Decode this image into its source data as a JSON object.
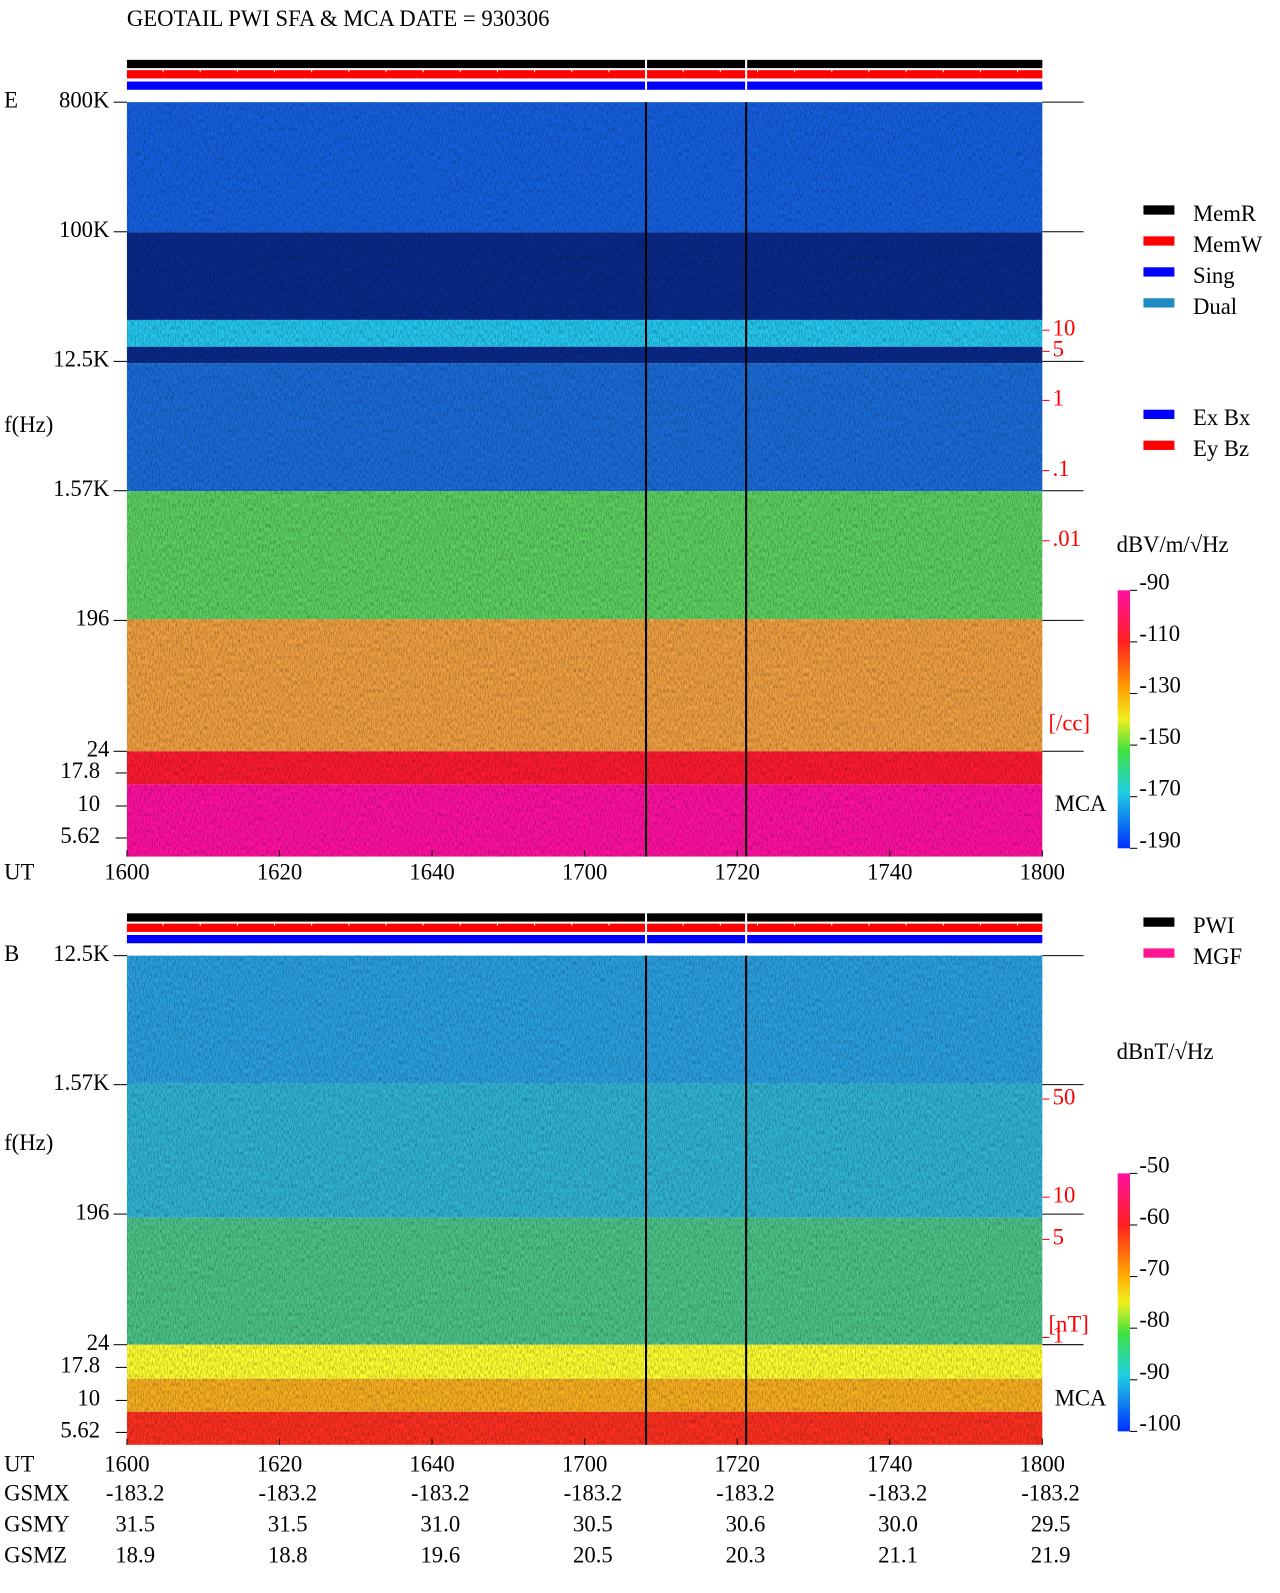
{
  "title": "GEOTAIL   PWI SFA & MCA    DATE = 930306",
  "chart_data": [
    {
      "type": "spectrogram",
      "panel_label": "E",
      "y_label": "f(Hz)",
      "yscale": "log",
      "ylim": [
        24,
        800000
      ],
      "yticks": [
        {
          "value": 800000,
          "label": "800K"
        },
        {
          "value": 100000,
          "label": "100K"
        },
        {
          "value": 12500,
          "label": "12.5K"
        },
        {
          "value": 1570,
          "label": "1.57K"
        },
        196,
        24
      ],
      "mca_label": "MCA",
      "mca_channels": [
        "17.8",
        "10",
        "5.62"
      ],
      "x_label": "UT",
      "xlim": [
        960,
        1080
      ],
      "xticks": [
        {
          "value": 960,
          "label": "1600"
        },
        {
          "value": 980,
          "label": "1620"
        },
        {
          "value": 1000,
          "label": "1640"
        },
        {
          "value": 1020,
          "label": "1700"
        },
        {
          "value": 1040,
          "label": "1720"
        },
        {
          "value": 1060,
          "label": "1740"
        },
        {
          "value": 1080,
          "label": "1800"
        }
      ],
      "colorbar": {
        "label": "dBV/m/√Hz",
        "lim": [
          -190,
          -90
        ],
        "ticks": [
          -90,
          -110,
          -130,
          -150,
          -170,
          -190
        ]
      },
      "side_scale": {
        "unit": "[/cc]",
        "lim": [
          0.01,
          10
        ],
        "ticks": [
          10,
          5,
          1,
          {
            "value": 0.1,
            "label": ".1"
          },
          {
            "value": 0.01,
            "label": ".01"
          }
        ]
      },
      "legend": [
        {
          "name": "MemR",
          "color": "#000000"
        },
        {
          "name": "MemW",
          "color": "#ff0000"
        },
        {
          "name": "Sing",
          "color": "#0000ff"
        },
        {
          "name": "Dual",
          "color": "#1e8bc3"
        }
      ],
      "legend2": [
        {
          "name": "Ex Bx",
          "color": "#0000ff"
        },
        {
          "name": "Ey Bz",
          "color": "#ff0000"
        }
      ]
    },
    {
      "type": "spectrogram",
      "panel_label": "B",
      "y_label": "f(Hz)",
      "yscale": "log",
      "ylim": [
        24,
        12500
      ],
      "yticks": [
        {
          "value": 12500,
          "label": "12.5K"
        },
        {
          "value": 1570,
          "label": "1.57K"
        },
        196,
        24
      ],
      "mca_label": "MCA",
      "mca_channels": [
        "17.8",
        "10",
        "5.62"
      ],
      "x_label": "UT",
      "xlim": [
        960,
        1080
      ],
      "xticks": [
        {
          "value": 960,
          "label": "1600"
        },
        {
          "value": 980,
          "label": "1620"
        },
        {
          "value": 1000,
          "label": "1640"
        },
        {
          "value": 1020,
          "label": "1700"
        },
        {
          "value": 1040,
          "label": "1720"
        },
        {
          "value": 1060,
          "label": "1740"
        },
        {
          "value": 1080,
          "label": "1800"
        }
      ],
      "colorbar": {
        "label": "dBnT/√Hz",
        "lim": [
          -100,
          -50
        ],
        "ticks": [
          -50,
          -60,
          -70,
          -80,
          -90,
          -100
        ]
      },
      "side_scale": {
        "unit": "[nT]",
        "lim": [
          1,
          50
        ],
        "ticks": [
          50,
          10,
          5,
          1
        ]
      },
      "legend": [
        {
          "name": "PWI",
          "color": "#000000"
        },
        {
          "name": "MGF",
          "color": "#ff1493"
        }
      ]
    }
  ],
  "ephemeris": {
    "row_labels": [
      "GSMX",
      "GSMY",
      "GSMZ"
    ],
    "rows": [
      [
        "-183.2",
        "-183.2",
        "-183.2",
        "-183.2",
        "-183.2",
        "-183.2",
        "-183.2"
      ],
      [
        "31.5",
        "31.5",
        "31.0",
        "30.5",
        "30.6",
        "30.0",
        "29.5"
      ],
      [
        "18.9",
        "18.8",
        "19.6",
        "20.5",
        "20.3",
        "21.1",
        "21.9"
      ]
    ]
  }
}
